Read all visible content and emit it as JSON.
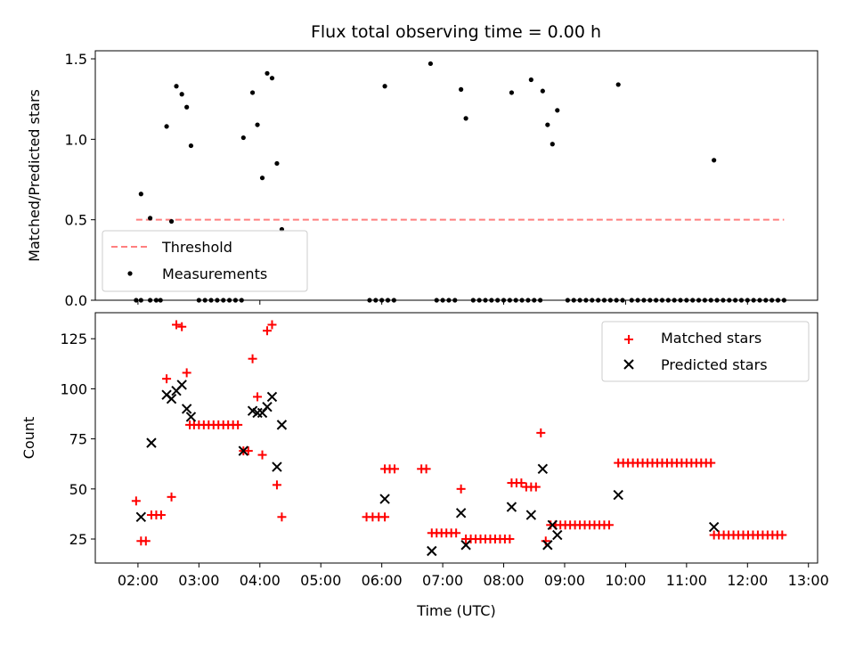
{
  "figure_title": "Flux total observing time = 0.00 h",
  "colors": {
    "threshold": "#ff7f7f",
    "measurement": "#000000",
    "matched": "#ff0000",
    "predicted": "#000000"
  },
  "chart_data": [
    {
      "type": "scatter",
      "title": "Flux total observing time = 0.00 h",
      "xlabel": "",
      "ylabel": "Matched/Predicted stars",
      "xlim": [
        1.3,
        13.15
      ],
      "ylim": [
        0,
        1.55
      ],
      "yticks": [
        0.0,
        0.5,
        1.0,
        1.5
      ],
      "ytick_labels": [
        "0.0",
        "0.5",
        "1.0",
        "1.5"
      ],
      "xticks": [
        2,
        4,
        6,
        8,
        10,
        12
      ],
      "legend_position": "lower-left",
      "legend": [
        "Threshold",
        "Measurements"
      ],
      "threshold": {
        "name": "Threshold",
        "y": 0.5,
        "x_start": 1.97,
        "x_end": 12.6,
        "style": "dashed"
      },
      "series": [
        {
          "name": "Measurements",
          "points": [
            [
              2.05,
              0.66
            ],
            [
              2.2,
              0.51
            ],
            [
              2.47,
              1.08
            ],
            [
              2.55,
              0.49
            ],
            [
              2.63,
              1.33
            ],
            [
              2.72,
              1.28
            ],
            [
              2.8,
              1.2
            ],
            [
              2.87,
              0.96
            ],
            [
              3.73,
              1.01
            ],
            [
              3.88,
              1.29
            ],
            [
              3.96,
              1.09
            ],
            [
              4.04,
              0.76
            ],
            [
              4.12,
              1.41
            ],
            [
              4.2,
              1.38
            ],
            [
              4.28,
              0.85
            ],
            [
              4.36,
              0.44
            ],
            [
              6.05,
              1.33
            ],
            [
              6.8,
              1.47
            ],
            [
              7.3,
              1.31
            ],
            [
              7.38,
              1.13
            ],
            [
              8.13,
              1.29
            ],
            [
              8.45,
              1.37
            ],
            [
              8.64,
              1.3
            ],
            [
              8.72,
              1.09
            ],
            [
              8.8,
              0.97
            ],
            [
              8.88,
              1.18
            ],
            [
              9.88,
              1.34
            ],
            [
              11.45,
              0.87
            ],
            [
              1.97,
              0
            ],
            [
              2.05,
              0
            ],
            [
              2.2,
              0
            ],
            [
              2.3,
              0
            ],
            [
              2.37,
              0
            ],
            [
              3.0,
              0
            ],
            [
              3.1,
              0
            ],
            [
              3.2,
              0
            ],
            [
              3.3,
              0
            ],
            [
              3.4,
              0
            ],
            [
              3.5,
              0
            ],
            [
              3.6,
              0
            ],
            [
              3.7,
              0
            ],
            [
              5.8,
              0
            ],
            [
              5.9,
              0
            ],
            [
              6.0,
              0
            ],
            [
              6.1,
              0
            ],
            [
              6.2,
              0
            ],
            [
              6.9,
              0
            ],
            [
              7.0,
              0
            ],
            [
              7.1,
              0
            ],
            [
              7.2,
              0
            ],
            [
              7.5,
              0
            ],
            [
              7.6,
              0
            ],
            [
              7.7,
              0
            ],
            [
              7.8,
              0
            ],
            [
              7.9,
              0
            ],
            [
              8.0,
              0
            ],
            [
              8.1,
              0
            ],
            [
              8.2,
              0
            ],
            [
              8.3,
              0
            ],
            [
              8.4,
              0
            ],
            [
              8.5,
              0
            ],
            [
              8.6,
              0
            ],
            [
              9.05,
              0
            ],
            [
              9.15,
              0
            ],
            [
              9.25,
              0
            ],
            [
              9.35,
              0
            ],
            [
              9.45,
              0
            ],
            [
              9.55,
              0
            ],
            [
              9.65,
              0
            ],
            [
              9.75,
              0
            ],
            [
              9.85,
              0
            ],
            [
              9.95,
              0
            ],
            [
              10.1,
              0
            ],
            [
              10.2,
              0
            ],
            [
              10.3,
              0
            ],
            [
              10.4,
              0
            ],
            [
              10.5,
              0
            ],
            [
              10.6,
              0
            ],
            [
              10.7,
              0
            ],
            [
              10.8,
              0
            ],
            [
              10.9,
              0
            ],
            [
              11.0,
              0
            ],
            [
              11.1,
              0
            ],
            [
              11.2,
              0
            ],
            [
              11.3,
              0
            ],
            [
              11.4,
              0
            ],
            [
              11.5,
              0
            ],
            [
              11.6,
              0
            ],
            [
              11.7,
              0
            ],
            [
              11.8,
              0
            ],
            [
              11.9,
              0
            ],
            [
              12.0,
              0
            ],
            [
              12.1,
              0
            ],
            [
              12.2,
              0
            ],
            [
              12.3,
              0
            ],
            [
              12.4,
              0
            ],
            [
              12.5,
              0
            ],
            [
              12.6,
              0
            ]
          ]
        }
      ]
    },
    {
      "type": "scatter",
      "title": "",
      "xlabel": "Time (UTC)",
      "ylabel": "Count",
      "xlim": [
        1.3,
        13.15
      ],
      "ylim": [
        13,
        138
      ],
      "yticks": [
        25,
        50,
        75,
        100,
        125
      ],
      "ytick_labels": [
        "25",
        "50",
        "75",
        "100",
        "125"
      ],
      "xticks": [
        2,
        3,
        4,
        5,
        6,
        7,
        8,
        9,
        10,
        11,
        12,
        13
      ],
      "xtick_labels": [
        "02:00",
        "03:00",
        "04:00",
        "05:00",
        "06:00",
        "07:00",
        "08:00",
        "09:00",
        "10:00",
        "11:00",
        "12:00",
        "13:00"
      ],
      "legend_position": "upper-right",
      "legend": [
        "Matched stars",
        "Predicted stars"
      ],
      "series": [
        {
          "name": "Matched stars",
          "marker": "plus",
          "points": [
            [
              1.97,
              44
            ],
            [
              2.05,
              24
            ],
            [
              2.13,
              24
            ],
            [
              2.22,
              37
            ],
            [
              2.3,
              37
            ],
            [
              2.38,
              37
            ],
            [
              2.47,
              105
            ],
            [
              2.55,
              46
            ],
            [
              2.63,
              132
            ],
            [
              2.72,
              131
            ],
            [
              2.8,
              108
            ],
            [
              2.85,
              82
            ],
            [
              2.92,
              82
            ],
            [
              3.0,
              82
            ],
            [
              3.08,
              82
            ],
            [
              3.16,
              82
            ],
            [
              3.24,
              82
            ],
            [
              3.32,
              82
            ],
            [
              3.4,
              82
            ],
            [
              3.48,
              82
            ],
            [
              3.56,
              82
            ],
            [
              3.64,
              82
            ],
            [
              3.73,
              69
            ],
            [
              3.81,
              69
            ],
            [
              3.88,
              115
            ],
            [
              3.96,
              96
            ],
            [
              4.04,
              67
            ],
            [
              4.12,
              129
            ],
            [
              4.2,
              132
            ],
            [
              4.28,
              52
            ],
            [
              4.36,
              36
            ],
            [
              5.75,
              36
            ],
            [
              5.85,
              36
            ],
            [
              5.95,
              36
            ],
            [
              6.05,
              36
            ],
            [
              6.05,
              60
            ],
            [
              6.13,
              60
            ],
            [
              6.21,
              60
            ],
            [
              6.65,
              60
            ],
            [
              6.73,
              60
            ],
            [
              6.82,
              28
            ],
            [
              6.9,
              28
            ],
            [
              6.98,
              28
            ],
            [
              7.06,
              28
            ],
            [
              7.14,
              28
            ],
            [
              7.22,
              28
            ],
            [
              7.3,
              50
            ],
            [
              7.38,
              25
            ],
            [
              7.46,
              25
            ],
            [
              7.54,
              25
            ],
            [
              7.62,
              25
            ],
            [
              7.7,
              25
            ],
            [
              7.78,
              25
            ],
            [
              7.86,
              25
            ],
            [
              7.94,
              25
            ],
            [
              8.02,
              25
            ],
            [
              8.1,
              25
            ],
            [
              8.13,
              53
            ],
            [
              8.21,
              53
            ],
            [
              8.29,
              53
            ],
            [
              8.37,
              51
            ],
            [
              8.45,
              51
            ],
            [
              8.53,
              51
            ],
            [
              8.61,
              78
            ],
            [
              8.69,
              24
            ],
            [
              8.77,
              32
            ],
            [
              8.85,
              32
            ],
            [
              8.93,
              32
            ],
            [
              9.01,
              32
            ],
            [
              9.09,
              32
            ],
            [
              9.17,
              32
            ],
            [
              9.25,
              32
            ],
            [
              9.33,
              32
            ],
            [
              9.41,
              32
            ],
            [
              9.49,
              32
            ],
            [
              9.57,
              32
            ],
            [
              9.65,
              32
            ],
            [
              9.73,
              32
            ],
            [
              9.88,
              63
            ],
            [
              9.96,
              63
            ],
            [
              10.04,
              63
            ],
            [
              10.12,
              63
            ],
            [
              10.2,
              63
            ],
            [
              10.28,
              63
            ],
            [
              10.36,
              63
            ],
            [
              10.44,
              63
            ],
            [
              10.52,
              63
            ],
            [
              10.6,
              63
            ],
            [
              10.68,
              63
            ],
            [
              10.76,
              63
            ],
            [
              10.84,
              63
            ],
            [
              10.92,
              63
            ],
            [
              11.0,
              63
            ],
            [
              11.08,
              63
            ],
            [
              11.16,
              63
            ],
            [
              11.24,
              63
            ],
            [
              11.32,
              63
            ],
            [
              11.4,
              63
            ],
            [
              11.45,
              27
            ],
            [
              11.53,
              27
            ],
            [
              11.61,
              27
            ],
            [
              11.69,
              27
            ],
            [
              11.77,
              27
            ],
            [
              11.85,
              27
            ],
            [
              11.93,
              27
            ],
            [
              12.01,
              27
            ],
            [
              12.09,
              27
            ],
            [
              12.17,
              27
            ],
            [
              12.25,
              27
            ],
            [
              12.33,
              27
            ],
            [
              12.41,
              27
            ],
            [
              12.49,
              27
            ],
            [
              12.57,
              27
            ]
          ]
        },
        {
          "name": "Predicted stars",
          "marker": "x",
          "points": [
            [
              2.05,
              36
            ],
            [
              2.22,
              73
            ],
            [
              2.47,
              97
            ],
            [
              2.55,
              95
            ],
            [
              2.63,
              99
            ],
            [
              2.72,
              102
            ],
            [
              2.8,
              90
            ],
            [
              2.87,
              86
            ],
            [
              3.73,
              69
            ],
            [
              3.88,
              89
            ],
            [
              3.96,
              88
            ],
            [
              4.04,
              88
            ],
            [
              4.12,
              91
            ],
            [
              4.2,
              96
            ],
            [
              4.28,
              61
            ],
            [
              4.36,
              82
            ],
            [
              6.05,
              45
            ],
            [
              6.82,
              19
            ],
            [
              7.3,
              38
            ],
            [
              7.38,
              22
            ],
            [
              8.13,
              41
            ],
            [
              8.45,
              37
            ],
            [
              8.64,
              60
            ],
            [
              8.72,
              22
            ],
            [
              8.8,
              32
            ],
            [
              8.88,
              27
            ],
            [
              9.88,
              47
            ],
            [
              11.45,
              31
            ]
          ]
        }
      ]
    }
  ]
}
